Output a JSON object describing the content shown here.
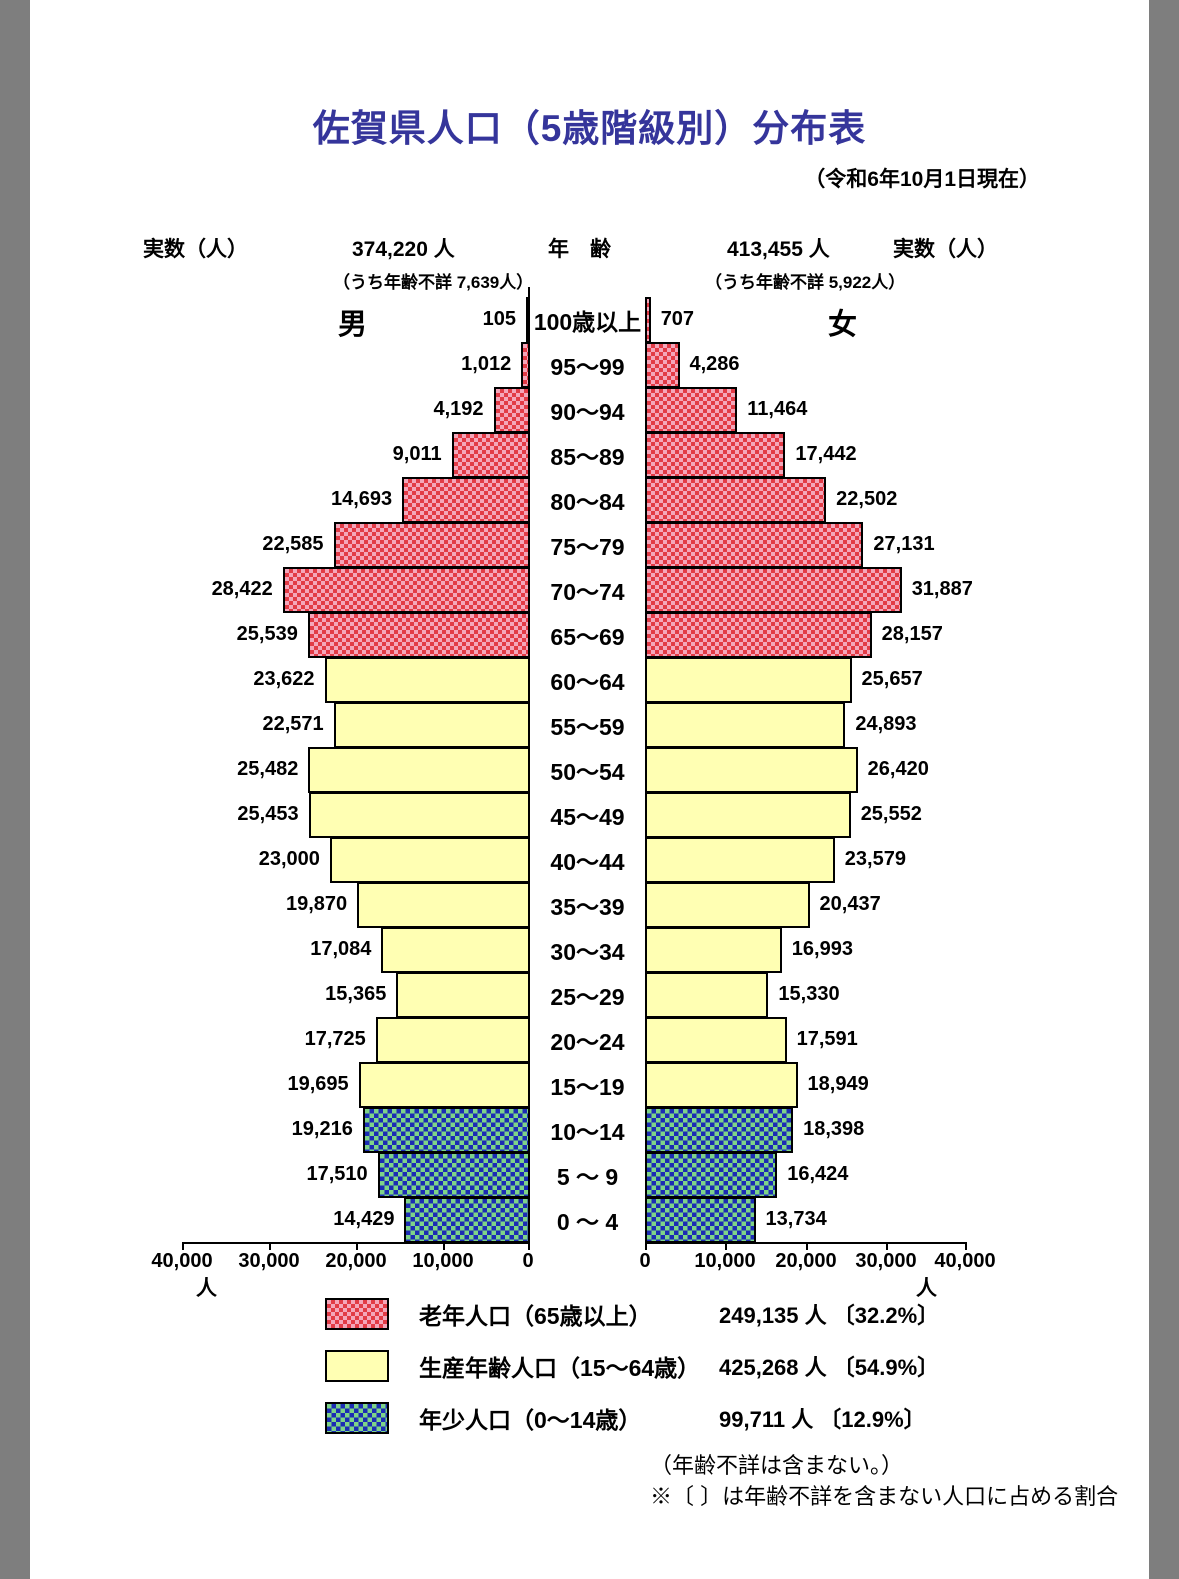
{
  "title": "佐賀県人口（5歳階級別）分布表",
  "date_note": "（令和6年10月1日現在）",
  "header": {
    "left_unit_label": "実数（人）",
    "male_total": "374,220 人",
    "male_age_unknown": "（うち年齢不詳 7,639人）",
    "age_axis_title": "年　齢",
    "female_total": "413,455 人",
    "female_age_unknown": "（うち年齢不詳 5,922人）",
    "right_unit_label": "実数（人）"
  },
  "male_header": "男",
  "female_header": "女",
  "chart_data": {
    "type": "bar",
    "subtype": "population_pyramid",
    "title": "佐賀県人口（5歳階級別）分布表",
    "age_groups": [
      "100歳以上",
      "95～99",
      "90～94",
      "85～89",
      "80～84",
      "75～79",
      "70～74",
      "65～69",
      "60～64",
      "55～59",
      "50～54",
      "45～49",
      "40～44",
      "35～39",
      "30～34",
      "25～29",
      "20～24",
      "15～19",
      "10～14",
      "5 ～ 9",
      "0 ～ 4"
    ],
    "series": [
      {
        "name": "男",
        "values": [
          105,
          1012,
          4192,
          9011,
          14693,
          22585,
          28422,
          25539,
          23622,
          22571,
          25482,
          25453,
          23000,
          19870,
          17084,
          15365,
          17725,
          19695,
          19216,
          17510,
          14429
        ]
      },
      {
        "name": "女",
        "values": [
          707,
          4286,
          11464,
          17442,
          22502,
          27131,
          31887,
          28157,
          25657,
          24893,
          26420,
          25552,
          23579,
          20437,
          16993,
          15330,
          17591,
          18949,
          18398,
          16424,
          13734
        ]
      }
    ],
    "xlim": [
      0,
      40000
    ],
    "male_tick_labels": [
      "40,000",
      "30,000",
      "20,000",
      "10,000",
      "0"
    ],
    "female_tick_labels": [
      "0",
      "10,000",
      "20,000",
      "30,000",
      "40,000"
    ],
    "axis_unit": "人",
    "group_bands": [
      {
        "name": "老年人口（65歳以上）",
        "rows": [
          0,
          7
        ],
        "style": "elderly",
        "total": "249,135",
        "percent": "32.2%"
      },
      {
        "name": "生産年齢人口（15～64歳）",
        "rows": [
          8,
          17
        ],
        "style": "working",
        "total": "425,268",
        "percent": "54.9%"
      },
      {
        "name": "年少人口（0～14歳）",
        "rows": [
          18,
          20
        ],
        "style": "young",
        "total": "99,711",
        "percent": "12.9%"
      }
    ]
  },
  "legend": {
    "items": [
      {
        "style": "elderly",
        "label": "老年人口（65歳以上）",
        "value_text": "249,135 人 〔32.2%〕"
      },
      {
        "style": "working",
        "label": "生産年齢人口（15～64歳）",
        "value_text": "425,268 人 〔54.9%〕"
      },
      {
        "style": "young",
        "label": "年少人口（0～14歳）",
        "value_text": "99,711 人 〔12.9%〕"
      }
    ]
  },
  "footnotes": [
    "（年齢不詳は含まない。）",
    "※〔 〕は年齢不詳を含まない人口に占める割合"
  ],
  "colors": {
    "title_navy": "#35359b",
    "elderly_dark": "#e23b46",
    "elderly_light": "#f4a6ba",
    "working_yellow": "#ffffb3",
    "young_blue": "#1b2cb4",
    "young_green": "#7ed488",
    "page_edge_grey": "#7e7e7e"
  }
}
